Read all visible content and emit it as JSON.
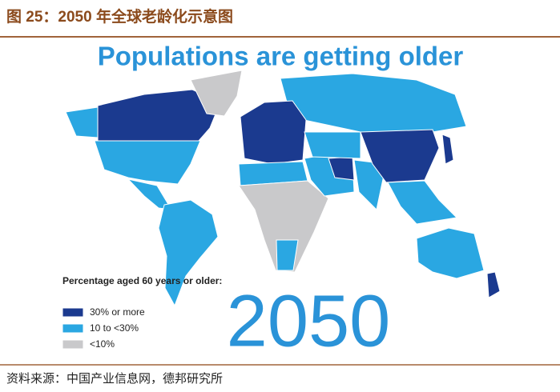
{
  "caption": "图 25：2050 年全球老龄化示意图",
  "map": {
    "title": "Populations are getting older",
    "legend": {
      "title": "Percentage aged 60 years or older:",
      "items": [
        "30% or more",
        "10 to <30%",
        "<10%"
      ]
    },
    "year_label": "2050"
  },
  "source": "资料来源：中国产业信息网，德邦研究所"
}
